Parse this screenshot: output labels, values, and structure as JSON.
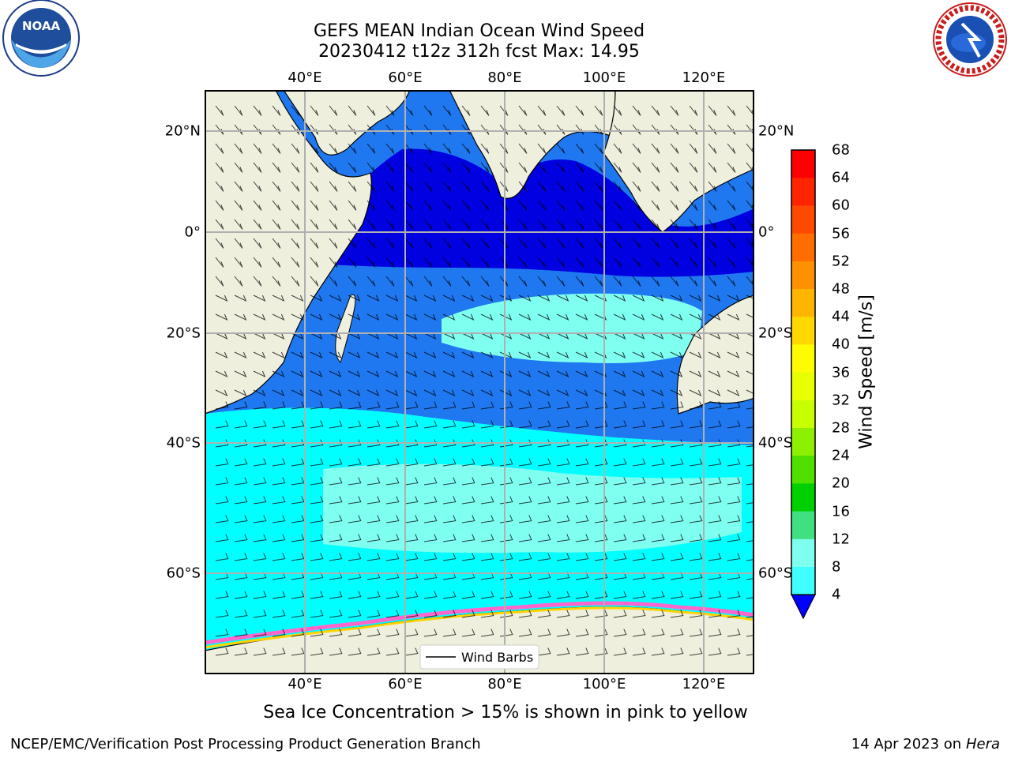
{
  "title": {
    "line1": "GEFS MEAN Indian Ocean Wind Speed",
    "line2": "20230412 t12z 312h fcst   Max: 14.95"
  },
  "note": "Sea Ice Concentration > 15% is shown in pink to yellow",
  "footer": {
    "left": "NCEP/EMC/Verification Post Processing Product Generation Branch",
    "right_date": "14 Apr 2023 on",
    "right_host": "Hera"
  },
  "map": {
    "lon_labels": [
      "40°E",
      "60°E",
      "80°E",
      "100°E",
      "120°E"
    ],
    "lat_labels": [
      "20°N",
      "0°",
      "20°S",
      "40°S",
      "60°S"
    ],
    "legend_label": "Wind Barbs"
  },
  "colorbar": {
    "title": "Wind Speed [m/s]",
    "ticks": [
      "68",
      "64",
      "60",
      "56",
      "52",
      "48",
      "44",
      "40",
      "36",
      "32",
      "28",
      "24",
      "20",
      "16",
      "12",
      "8",
      "4"
    ],
    "colors": [
      "#ff0000",
      "#ff2400",
      "#ff4800",
      "#ff6c00",
      "#ff9000",
      "#ffb400",
      "#ffd800",
      "#fffc00",
      "#e8ff00",
      "#c8ff00",
      "#8cf000",
      "#50e000",
      "#00d000",
      "#40e080",
      "#7ffff0",
      "#40ffff",
      "#00ffff",
      "#00b4ff"
    ]
  },
  "logos": {
    "noaa_text": "NOAA",
    "nws_text": "NATIONAL WEATHER SERVICE"
  }
}
